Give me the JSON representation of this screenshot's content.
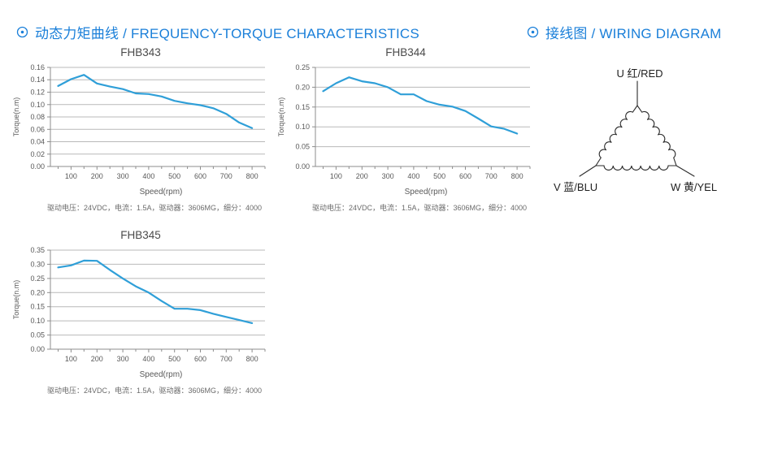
{
  "header": {
    "accent_color": "#1a7fd9",
    "sections": [
      {
        "icon": "circle-dot-icon",
        "title": "动态力矩曲线 / FREQUENCY-TORQUE CHARACTERISTICS"
      },
      {
        "icon": "circle-dot-icon",
        "title": "接线图 / WIRING DIAGRAM"
      }
    ]
  },
  "chart_data": [
    {
      "type": "line",
      "title": "FHB343",
      "xlabel": "Speed(rpm)",
      "ylabel": "Torque(n.m)",
      "caption": "驱动电压：24VDC，电流：1.5A，驱动器：3606MG，细分：4000",
      "x": [
        50,
        100,
        150,
        200,
        250,
        300,
        350,
        400,
        450,
        500,
        550,
        600,
        650,
        700,
        750,
        800
      ],
      "y": [
        0.13,
        0.141,
        0.148,
        0.134,
        0.129,
        0.125,
        0.118,
        0.117,
        0.113,
        0.106,
        0.102,
        0.099,
        0.094,
        0.085,
        0.071,
        0.062
      ],
      "xlim": [
        20,
        850
      ],
      "ylim": [
        0,
        0.16
      ],
      "ystep": 0.02,
      "xticks": [
        100,
        200,
        300,
        400,
        500,
        600,
        700,
        800
      ],
      "grid": true,
      "legend": null,
      "line_color": "#2f9fd8"
    },
    {
      "type": "line",
      "title": "FHB344",
      "xlabel": "Speed(rpm)",
      "ylabel": "Torque(n.m)",
      "caption": "驱动电压：24VDC，电流：1.5A，驱动器：3606MG，细分：4000",
      "x": [
        50,
        100,
        150,
        200,
        250,
        300,
        350,
        400,
        450,
        500,
        550,
        600,
        650,
        700,
        750,
        800
      ],
      "y": [
        0.19,
        0.21,
        0.225,
        0.215,
        0.21,
        0.2,
        0.182,
        0.182,
        0.165,
        0.156,
        0.151,
        0.14,
        0.121,
        0.101,
        0.095,
        0.083
      ],
      "xlim": [
        20,
        850
      ],
      "ylim": [
        0,
        0.25
      ],
      "ystep": 0.05,
      "xticks": [
        100,
        200,
        300,
        400,
        500,
        600,
        700,
        800
      ],
      "grid": true,
      "legend": null,
      "line_color": "#2f9fd8"
    },
    {
      "type": "line",
      "title": "FHB345",
      "xlabel": "Speed(rpm)",
      "ylabel": "Torque(n.m)",
      "caption": "驱动电压：24VDC，电流：1.5A，驱动器：3606MG，细分：4000",
      "x": [
        50,
        100,
        150,
        200,
        250,
        300,
        350,
        400,
        450,
        500,
        550,
        600,
        650,
        700,
        750,
        800
      ],
      "y": [
        0.289,
        0.296,
        0.313,
        0.312,
        0.28,
        0.25,
        0.222,
        0.2,
        0.17,
        0.143,
        0.143,
        0.138,
        0.125,
        0.114,
        0.103,
        0.092
      ],
      "xlim": [
        20,
        850
      ],
      "ylim": [
        0,
        0.35
      ],
      "ystep": 0.05,
      "xticks": [
        100,
        200,
        300,
        400,
        500,
        600,
        700,
        800
      ],
      "grid": true,
      "legend": null,
      "line_color": "#2f9fd8"
    }
  ],
  "wiring": {
    "type": "delta-winding",
    "terminals": [
      {
        "id": "U",
        "label": "U 红/RED",
        "position": "top"
      },
      {
        "id": "V",
        "label": "V 蓝/BLU",
        "position": "bottom-left"
      },
      {
        "id": "W",
        "label": "W 黄/YEL",
        "position": "bottom-right"
      }
    ]
  }
}
